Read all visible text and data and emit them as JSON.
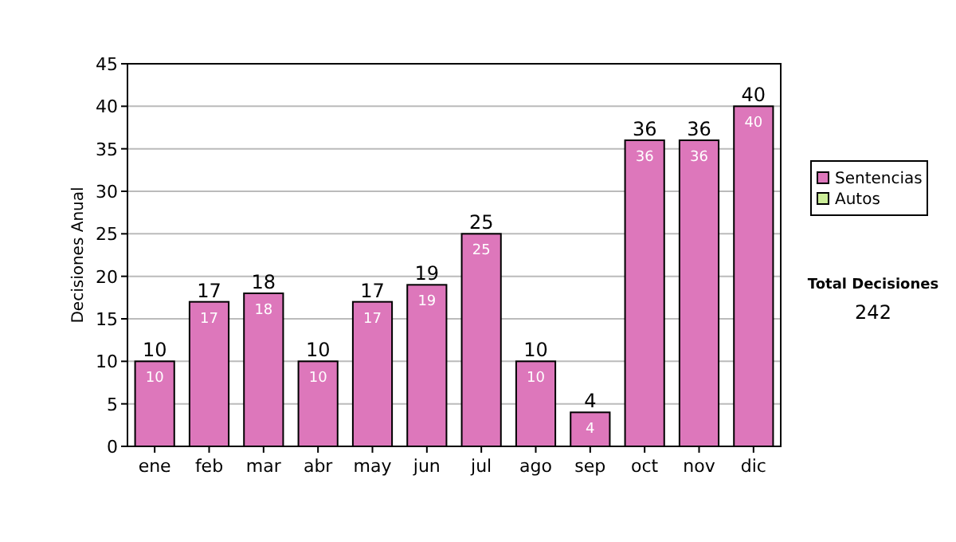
{
  "chart_data": {
    "type": "bar",
    "ylabel": "Decisiones Anual",
    "categories": [
      "ene",
      "feb",
      "mar",
      "abr",
      "may",
      "jun",
      "jul",
      "ago",
      "sep",
      "oct",
      "nov",
      "dic"
    ],
    "series": [
      {
        "name": "Sentencias",
        "color": "#dd77bb",
        "values": [
          10,
          17,
          18,
          10,
          17,
          19,
          25,
          10,
          4,
          36,
          36,
          40
        ],
        "value_labels": [
          "10",
          "17",
          "18",
          "10",
          "17",
          "19",
          "25",
          "10",
          "4",
          "36",
          "36",
          "40"
        ]
      },
      {
        "name": "Autos",
        "color": "#ccee99",
        "values": [
          null,
          null,
          null,
          null,
          null,
          null,
          null,
          null,
          null,
          null,
          null,
          null
        ]
      }
    ],
    "totals": [
      "10",
      "17",
      "18",
      "10",
      "17",
      "19",
      "25",
      "10",
      "4",
      "36",
      "36",
      "40"
    ],
    "ylim": [
      0,
      45
    ],
    "yticks": [
      0,
      5,
      10,
      15,
      20,
      25,
      30,
      35,
      40,
      45
    ],
    "grid": "y",
    "legend": "right",
    "annotations": [
      "Total Decisiones",
      "242"
    ]
  }
}
